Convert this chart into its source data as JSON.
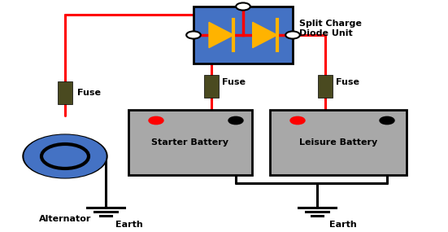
{
  "bg_color": "#ffffff",
  "diode_box_color": "#4472c4",
  "diode_arrow_color": "#FFB300",
  "battery_color": "#A8A8A8",
  "fuse_color": "#4a4a20",
  "alt_color": "#4472c4",
  "wire_red": "#ff0000",
  "wire_black": "#000000",
  "labels": {
    "alternator": "Alternator",
    "starter": "Starter Battery",
    "leisure": "Leisure Battery",
    "earth1": "Earth",
    "earth2": "Earth",
    "fuse1": "Fuse",
    "fuse2": "Fuse",
    "fuse3": "Fuse",
    "diode_unit": "Split Charge\nDiode Unit"
  },
  "figsize": [
    5.51,
    2.85
  ],
  "dpi": 100
}
